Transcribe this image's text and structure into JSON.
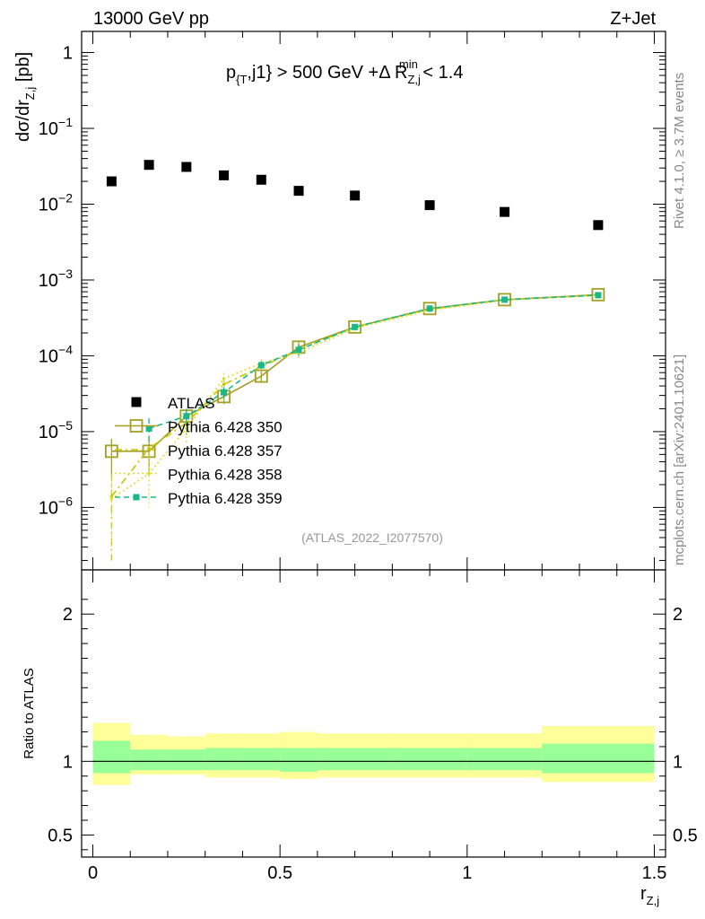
{
  "header": {
    "left": "13000 GeV pp",
    "right": "Z+Jet"
  },
  "sidebar": {
    "rivet": "Rivet 4.1.0, ≥ 3.7M events",
    "mcplots": "mcplots.cern.ch [arXiv:2401.10621]"
  },
  "chart_data": {
    "type": "scatter",
    "title": "p_{T},j1} > 500 GeV +Δ R_Z,j^min < 1.4",
    "title_parts": {
      "p": "p",
      "p_sub": "{T",
      "mid": ",j1} > 500 GeV +Δ R",
      "r_sub": "Z,j",
      "r_sup": "min",
      "tail": " < 1.4"
    },
    "watermark": "(ATLAS_2022_I2077570)",
    "ylabel": {
      "main": "dσ/dr",
      "sub": "Z,j",
      "unit": " [pb]"
    },
    "xlabel": {
      "main": "r",
      "sub": "Z,j"
    },
    "ratio_ylabel": "Ratio to ATLAS",
    "xlim": [
      -0.03,
      1.53
    ],
    "ylim_log": [
      1.5e-07,
      1.9
    ],
    "ratio_ylim": [
      0.35,
      2.3
    ],
    "x_ticks": [
      {
        "v": 0,
        "label": "0"
      },
      {
        "v": 0.5,
        "label": "0.5"
      },
      {
        "v": 1,
        "label": "1"
      },
      {
        "v": 1.5,
        "label": "1.5"
      }
    ],
    "y_ticks": [
      {
        "v": 1,
        "base": "1",
        "exp": ""
      },
      {
        "v": 0.1,
        "base": "10",
        "exp": "−1"
      },
      {
        "v": 0.01,
        "base": "10",
        "exp": "−2"
      },
      {
        "v": 0.001,
        "base": "10",
        "exp": "−3"
      },
      {
        "v": 0.0001,
        "base": "10",
        "exp": "−4"
      },
      {
        "v": 1e-05,
        "base": "10",
        "exp": "−5"
      },
      {
        "v": 1e-06,
        "base": "10",
        "exp": "−6"
      }
    ],
    "ratio_ticks": [
      {
        "v": 0.5,
        "label": "0.5"
      },
      {
        "v": 1,
        "label": "1"
      },
      {
        "v": 2,
        "label": "2"
      }
    ],
    "bins": [
      [
        0.0,
        0.1
      ],
      [
        0.1,
        0.2
      ],
      [
        0.2,
        0.3
      ],
      [
        0.3,
        0.4
      ],
      [
        0.4,
        0.5
      ],
      [
        0.5,
        0.6
      ],
      [
        0.6,
        0.8
      ],
      [
        0.8,
        1.0
      ],
      [
        1.0,
        1.2
      ],
      [
        1.2,
        1.5
      ]
    ],
    "data": {
      "name": "ATLAS",
      "x": [
        0.05,
        0.15,
        0.25,
        0.35,
        0.45,
        0.55,
        0.7,
        0.9,
        1.1,
        1.35
      ],
      "y": [
        0.02,
        0.033,
        0.031,
        0.024,
        0.021,
        0.015,
        0.013,
        0.0097,
        0.0079,
        0.0053
      ]
    },
    "ratio_bands": {
      "stat_lo": [
        0.92,
        0.94,
        0.94,
        0.94,
        0.94,
        0.93,
        0.94,
        0.94,
        0.94,
        0.92
      ],
      "stat_hi": [
        1.14,
        1.08,
        1.08,
        1.09,
        1.09,
        1.09,
        1.09,
        1.09,
        1.09,
        1.12
      ],
      "syst_lo": [
        0.84,
        0.91,
        0.91,
        0.89,
        0.89,
        0.88,
        0.89,
        0.89,
        0.89,
        0.86
      ],
      "syst_hi": [
        1.26,
        1.18,
        1.17,
        1.19,
        1.19,
        1.2,
        1.19,
        1.19,
        1.19,
        1.24
      ]
    },
    "series": [
      {
        "name": "Pythia 6.428 350",
        "color": "#a3a024",
        "style": "solid",
        "marker": "open-square",
        "x": [
          0.05,
          0.15,
          0.25,
          0.35,
          0.45,
          0.55,
          0.7,
          0.9,
          1.1,
          1.35
        ],
        "y": [
          5.5e-06,
          5.5e-06,
          1.6e-05,
          2.9e-05,
          5.4e-05,
          0.00013,
          0.00024,
          0.00042,
          0.00055,
          0.00064
        ],
        "err_lo": [
          2.8e-06,
          2.8e-06,
          4e-06,
          6e-06,
          8e-06,
          2e-05,
          2e-05,
          3e-05,
          3e-05,
          3e-05
        ],
        "err_hi": [
          2.5e-06,
          2.5e-06,
          4e-06,
          6e-06,
          8e-06,
          2e-05,
          2e-05,
          3e-05,
          3e-05,
          3e-05
        ]
      },
      {
        "name": "Pythia 6.428 357",
        "color": "#c8c400",
        "style": "dashdot",
        "marker": "none",
        "x": [
          0.05,
          0.15,
          0.25,
          0.35,
          0.45,
          0.55,
          0.7,
          0.9,
          1.1,
          1.35
        ],
        "y": [
          1.4e-06,
          6e-06,
          1.3e-05,
          4.2e-05,
          7.2e-05,
          0.00012,
          0.00024,
          0.00041,
          0.00055,
          0.00063
        ],
        "err_lo": [
          1.2e-06,
          3e-06,
          4e-06,
          1e-05,
          1e-05,
          2e-05,
          2e-05,
          3e-05,
          3e-05,
          3e-05
        ],
        "err_hi": [
          1.4e-06,
          3e-06,
          4e-06,
          1e-05,
          1e-05,
          2e-05,
          2e-05,
          3e-05,
          3e-05,
          3e-05
        ]
      },
      {
        "name": "Pythia 6.428 358",
        "color": "#dede30",
        "style": "dotted",
        "marker": "none",
        "x": [
          0.05,
          0.15,
          0.25,
          0.35,
          0.45,
          0.55,
          0.7,
          0.9,
          1.1,
          1.35
        ],
        "y": [
          1.3e-06,
          2.8e-06,
          1.1e-05,
          5e-05,
          8e-05,
          0.00011,
          0.00023,
          0.0004,
          0.00054,
          0.00063
        ],
        "err_lo": [
          1e-06,
          1.8e-06,
          4e-06,
          1e-05,
          1e-05,
          2e-05,
          2e-05,
          3e-05,
          3e-05,
          3e-05
        ],
        "err_hi": [
          1.2e-06,
          1.8e-06,
          4e-06,
          1e-05,
          1e-05,
          2e-05,
          2e-05,
          3e-05,
          3e-05,
          3e-05
        ]
      },
      {
        "name": "Pythia 6.428 359",
        "color": "#18b888",
        "style": "dashed",
        "marker": "filled-square",
        "x": [
          0.15,
          0.25,
          0.35,
          0.45,
          0.55,
          0.7,
          0.9,
          1.1,
          1.35
        ],
        "y": [
          1.1e-05,
          1.6e-05,
          3.3e-05,
          7.5e-05,
          0.00012,
          0.00024,
          0.00042,
          0.00055,
          0.00063
        ],
        "err_lo": [
          4e-06,
          4e-06,
          6e-06,
          1e-05,
          2e-05,
          2e-05,
          3e-05,
          3e-05,
          3e-05
        ],
        "err_hi": [
          4e-06,
          4e-06,
          6e-06,
          1e-05,
          2e-05,
          2e-05,
          3e-05,
          3e-05,
          3e-05
        ]
      }
    ]
  }
}
